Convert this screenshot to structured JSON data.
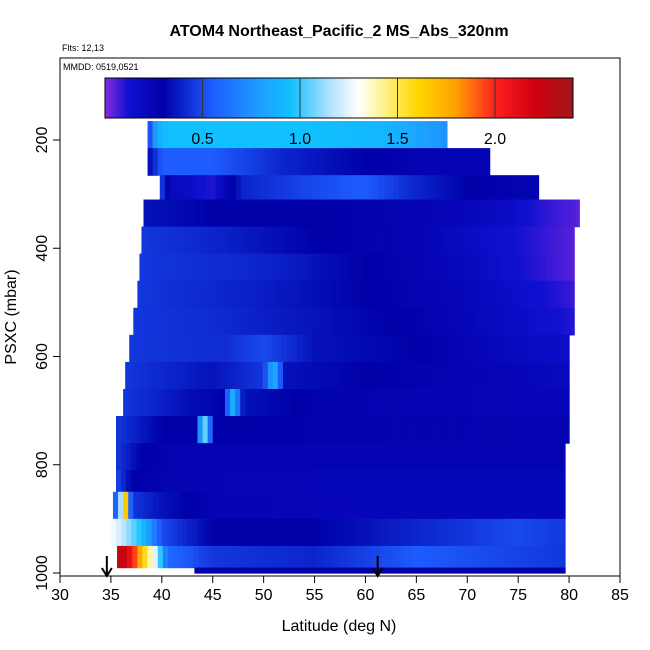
{
  "chart_data": {
    "type": "heatmap",
    "title": "ATOM4 Northeast_Pacific_2 MS_Abs_320nm",
    "flights_label": "Flts: 12,13",
    "date_label": "MMDD: 0519,0521",
    "xlabel": "Latitude (deg N)",
    "ylabel": "PSXC (mbar)",
    "xlim": [
      30,
      85
    ],
    "ylim": [
      1000,
      0
    ],
    "x_ticks": [
      30,
      35,
      40,
      45,
      50,
      55,
      60,
      65,
      70,
      75,
      80,
      85
    ],
    "y_ticks": [
      200,
      400,
      600,
      800,
      1000
    ],
    "y_reversed": true,
    "colorbar": {
      "range": [
        0,
        2.4
      ],
      "ticks": [
        0.5,
        1.0,
        1.5,
        2.0
      ],
      "tick_labels": [
        "0.5",
        "1.0",
        "1.5",
        "2.0"
      ],
      "stops": [
        {
          "v": 0.0,
          "c": "#8a2be2"
        },
        {
          "v": 0.12,
          "c": "#1010d0"
        },
        {
          "v": 0.3,
          "c": "#0000a8"
        },
        {
          "v": 0.55,
          "c": "#1e5cff"
        },
        {
          "v": 0.8,
          "c": "#1ea0ff"
        },
        {
          "v": 0.95,
          "c": "#10c0ff"
        },
        {
          "v": 1.15,
          "c": "#b0e0ff"
        },
        {
          "v": 1.3,
          "c": "#ffffff"
        },
        {
          "v": 1.45,
          "c": "#fff07a"
        },
        {
          "v": 1.6,
          "c": "#ffd700"
        },
        {
          "v": 1.8,
          "c": "#ffa000"
        },
        {
          "v": 2.0,
          "c": "#ff2020"
        },
        {
          "v": 2.2,
          "c": "#d00010"
        },
        {
          "v": 2.4,
          "c": "#a01818"
        }
      ]
    },
    "markers": [
      {
        "x": 34.6,
        "label": "down-arrow"
      },
      {
        "x": 61.2,
        "label": "down-arrow"
      }
    ],
    "pressure_bands": [
      {
        "p_top": 165,
        "p_bottom": 215,
        "lat_min": 38.6,
        "lat_max": 68.0,
        "profile": [
          [
            38.6,
            0.4
          ],
          [
            39.5,
            0.85
          ],
          [
            40.5,
            0.95
          ],
          [
            55,
            0.95
          ],
          [
            62,
            0.9
          ],
          [
            66,
            0.8
          ],
          [
            68.0,
            0.75
          ]
        ]
      },
      {
        "p_top": 215,
        "p_bottom": 265,
        "lat_min": 38.6,
        "lat_max": 72.2,
        "profile": [
          [
            38.6,
            0.3
          ],
          [
            40,
            0.55
          ],
          [
            45,
            0.55
          ],
          [
            52,
            0.4
          ],
          [
            60,
            0.3
          ],
          [
            66,
            0.25
          ],
          [
            72.2,
            0.25
          ]
        ]
      },
      {
        "p_top": 265,
        "p_bottom": 310,
        "lat_min": 39.8,
        "lat_max": 77.0,
        "profile": [
          [
            39.8,
            0.5
          ],
          [
            41,
            0.2
          ],
          [
            45,
            0.1
          ],
          [
            48,
            0.4
          ],
          [
            55,
            0.5
          ],
          [
            60,
            0.55
          ],
          [
            65,
            0.4
          ],
          [
            70,
            0.3
          ],
          [
            77.0,
            0.25
          ]
        ]
      },
      {
        "p_top": 310,
        "p_bottom": 360,
        "lat_min": 38.2,
        "lat_max": 81.0,
        "profile": [
          [
            38.2,
            0.35
          ],
          [
            45,
            0.3
          ],
          [
            55,
            0.3
          ],
          [
            65,
            0.25
          ],
          [
            72,
            0.2
          ],
          [
            77,
            0.1
          ],
          [
            81.0,
            0.05
          ]
        ]
      },
      {
        "p_top": 360,
        "p_bottom": 410,
        "lat_min": 38.0,
        "lat_max": 80.5,
        "profile": [
          [
            38.0,
            0.45
          ],
          [
            45,
            0.4
          ],
          [
            55,
            0.3
          ],
          [
            65,
            0.25
          ],
          [
            72,
            0.15
          ],
          [
            80.5,
            0.05
          ]
        ]
      },
      {
        "p_top": 410,
        "p_bottom": 460,
        "lat_min": 37.8,
        "lat_max": 80.5,
        "profile": [
          [
            37.8,
            0.45
          ],
          [
            50,
            0.4
          ],
          [
            60,
            0.3
          ],
          [
            70,
            0.2
          ],
          [
            75,
            0.12
          ],
          [
            80.5,
            0.05
          ]
        ]
      },
      {
        "p_top": 460,
        "p_bottom": 510,
        "lat_min": 37.6,
        "lat_max": 80.5,
        "profile": [
          [
            37.6,
            0.45
          ],
          [
            50,
            0.38
          ],
          [
            60,
            0.3
          ],
          [
            70,
            0.22
          ],
          [
            75,
            0.15
          ],
          [
            80.5,
            0.08
          ]
        ]
      },
      {
        "p_top": 510,
        "p_bottom": 560,
        "lat_min": 37.2,
        "lat_max": 80.5,
        "profile": [
          [
            37.2,
            0.45
          ],
          [
            45,
            0.42
          ],
          [
            55,
            0.35
          ],
          [
            65,
            0.28
          ],
          [
            72,
            0.2
          ],
          [
            80.5,
            0.1
          ]
        ]
      },
      {
        "p_top": 560,
        "p_bottom": 610,
        "lat_min": 36.8,
        "lat_max": 80.0,
        "profile": [
          [
            36.8,
            0.45
          ],
          [
            46,
            0.42
          ],
          [
            50,
            0.5
          ],
          [
            55,
            0.35
          ],
          [
            65,
            0.3
          ],
          [
            72,
            0.22
          ],
          [
            80.0,
            0.15
          ]
        ]
      },
      {
        "p_top": 610,
        "p_bottom": 660,
        "lat_min": 36.4,
        "lat_max": 80.0,
        "profile": [
          [
            36.4,
            0.45
          ],
          [
            45,
            0.35
          ],
          [
            50,
            0.45
          ],
          [
            51,
            0.9
          ],
          [
            52,
            0.35
          ],
          [
            60,
            0.3
          ],
          [
            70,
            0.25
          ],
          [
            80.0,
            0.2
          ]
        ]
      },
      {
        "p_top": 660,
        "p_bottom": 710,
        "lat_min": 36.2,
        "lat_max": 80.0,
        "profile": [
          [
            36.2,
            0.45
          ],
          [
            42,
            0.35
          ],
          [
            46,
            0.3
          ],
          [
            47,
            0.9
          ],
          [
            48,
            0.35
          ],
          [
            55,
            0.28
          ],
          [
            65,
            0.25
          ],
          [
            80.0,
            0.22
          ]
        ]
      },
      {
        "p_top": 710,
        "p_bottom": 760,
        "lat_min": 35.5,
        "lat_max": 80.0,
        "profile": [
          [
            35.5,
            0.45
          ],
          [
            40,
            0.3
          ],
          [
            43.5,
            0.3
          ],
          [
            44,
            1.2
          ],
          [
            44.5,
            0.9
          ],
          [
            45,
            0.3
          ],
          [
            55,
            0.28
          ],
          [
            80.0,
            0.25
          ]
        ]
      },
      {
        "p_top": 760,
        "p_bottom": 810,
        "lat_min": 35.5,
        "lat_max": 79.6,
        "profile": [
          [
            35.5,
            0.45
          ],
          [
            38,
            0.3
          ],
          [
            42,
            0.25
          ],
          [
            55,
            0.25
          ],
          [
            79.6,
            0.25
          ]
        ]
      },
      {
        "p_top": 810,
        "p_bottom": 850,
        "lat_min": 35.5,
        "lat_max": 79.6,
        "profile": [
          [
            35.5,
            0.5
          ],
          [
            37,
            0.3
          ],
          [
            41,
            0.25
          ],
          [
            55,
            0.22
          ],
          [
            79.6,
            0.22
          ]
        ]
      },
      {
        "p_top": 850,
        "p_bottom": 900,
        "lat_min": 35.2,
        "lat_max": 79.6,
        "profile": [
          [
            35.2,
            0.3
          ],
          [
            36,
            1.2
          ],
          [
            36.5,
            1.7
          ],
          [
            37,
            0.45
          ],
          [
            40,
            0.35
          ],
          [
            45,
            0.25
          ],
          [
            60,
            0.22
          ],
          [
            79.6,
            0.22
          ]
        ]
      },
      {
        "p_top": 900,
        "p_bottom": 950,
        "lat_min": 35.0,
        "lat_max": 79.6,
        "profile": [
          [
            35.0,
            1.3
          ],
          [
            36,
            1.2
          ],
          [
            38,
            0.95
          ],
          [
            40,
            0.5
          ],
          [
            45,
            0.3
          ],
          [
            55,
            0.3
          ],
          [
            70,
            0.45
          ],
          [
            75,
            0.5
          ],
          [
            79.6,
            0.45
          ]
        ]
      },
      {
        "p_top": 950,
        "p_bottom": 990,
        "lat_min": 35.6,
        "lat_max": 79.6,
        "profile": [
          [
            35.6,
            2.3
          ],
          [
            36.5,
            2.2
          ],
          [
            37.5,
            1.9
          ],
          [
            38.5,
            1.5
          ],
          [
            39.5,
            1.2
          ],
          [
            40.5,
            0.6
          ],
          [
            45,
            0.45
          ],
          [
            55,
            0.4
          ],
          [
            65,
            0.55
          ],
          [
            72,
            0.5
          ],
          [
            79.6,
            0.45
          ]
        ]
      },
      {
        "p_top": 990,
        "p_bottom": 1000,
        "lat_min": 43.2,
        "lat_max": 79.6,
        "profile": [
          [
            43.2,
            0.3
          ],
          [
            60,
            0.3
          ],
          [
            79.6,
            0.3
          ]
        ]
      }
    ]
  }
}
